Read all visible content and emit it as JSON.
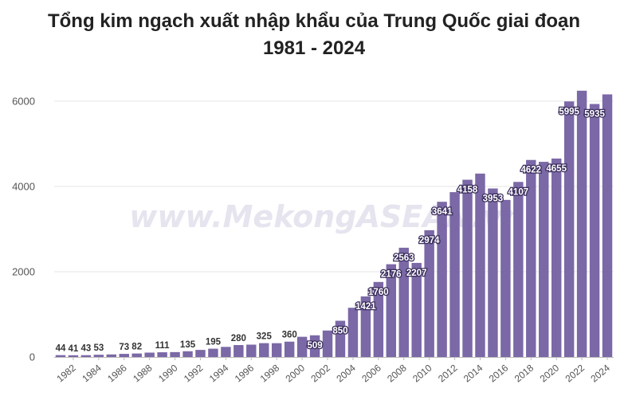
{
  "chart_data": {
    "type": "bar",
    "title_line1": "Tổng kim ngạch xuất nhập khẩu của Trung Quốc giai đoạn",
    "title_line2": "1981 - 2024",
    "watermark": "www.MekongASEAN.vn",
    "bar_color": "#7b68a6",
    "ylim": [
      0,
      6400
    ],
    "yticks": [
      0,
      2000,
      4000,
      6000
    ],
    "xtick_labels": [
      "1982",
      "1984",
      "1986",
      "1988",
      "1990",
      "1992",
      "1994",
      "1996",
      "1998",
      "2000",
      "2002",
      "2004",
      "2006",
      "2008",
      "2010",
      "2012",
      "2014",
      "2016",
      "2018",
      "2020",
      "2022",
      "2024"
    ],
    "categories": [
      "1981",
      "1982",
      "1983",
      "1984",
      "1985",
      "1986",
      "1987",
      "1988",
      "1989",
      "1990",
      "1991",
      "1992",
      "1993",
      "1994",
      "1995",
      "1996",
      "1997",
      "1998",
      "1999",
      "2000",
      "2001",
      "2002",
      "2003",
      "2004",
      "2005",
      "2006",
      "2007",
      "2008",
      "2009",
      "2010",
      "2011",
      "2012",
      "2013",
      "2014",
      "2015",
      "2016",
      "2017",
      "2018",
      "2019",
      "2020",
      "2021",
      "2022",
      "2023",
      "2024"
    ],
    "values": [
      44,
      41,
      43,
      53,
      60,
      73,
      82,
      103,
      111,
      115,
      135,
      166,
      195,
      237,
      280,
      290,
      325,
      324,
      360,
      474,
      509,
      621,
      850,
      1155,
      1421,
      1760,
      2176,
      2563,
      2207,
      2974,
      3641,
      3867,
      4158,
      4302,
      3953,
      3685,
      4107,
      4622,
      4578,
      4655,
      5995,
      6246,
      5935,
      6160
    ],
    "data_labels": [
      {
        "text": "44",
        "year": "1981",
        "style": "dark"
      },
      {
        "text": "41",
        "year": "1982",
        "style": "dark"
      },
      {
        "text": "43",
        "year": "1983",
        "style": "dark"
      },
      {
        "text": "53",
        "year": "1984",
        "style": "dark"
      },
      {
        "text": "73",
        "year": "1986",
        "style": "dark"
      },
      {
        "text": "82",
        "year": "1987",
        "style": "dark"
      },
      {
        "text": "111",
        "year": "1989",
        "style": "dark"
      },
      {
        "text": "135",
        "year": "1991",
        "style": "dark"
      },
      {
        "text": "195",
        "year": "1993",
        "style": "dark"
      },
      {
        "text": "280",
        "year": "1995",
        "style": "dark"
      },
      {
        "text": "325",
        "year": "1997",
        "style": "dark"
      },
      {
        "text": "360",
        "year": "1999",
        "style": "dark"
      },
      {
        "text": "509",
        "year": "2001",
        "style": "halo"
      },
      {
        "text": "850",
        "year": "2003",
        "style": "halo"
      },
      {
        "text": "1421",
        "year": "2005",
        "style": "halo"
      },
      {
        "text": "1760",
        "year": "2006",
        "style": "halo"
      },
      {
        "text": "2176",
        "year": "2007",
        "style": "halo"
      },
      {
        "text": "2563",
        "year": "2008",
        "style": "halo"
      },
      {
        "text": "2207",
        "year": "2009",
        "style": "halo"
      },
      {
        "text": "2974",
        "year": "2010",
        "style": "halo"
      },
      {
        "text": "3641",
        "year": "2011",
        "style": "halo"
      },
      {
        "text": "4158",
        "year": "2013",
        "style": "halo"
      },
      {
        "text": "3953",
        "year": "2015",
        "style": "halo"
      },
      {
        "text": "4107",
        "year": "2017",
        "style": "halo"
      },
      {
        "text": "4622",
        "year": "2018",
        "style": "halo"
      },
      {
        "text": "4655",
        "year": "2020",
        "style": "halo"
      },
      {
        "text": "5995",
        "year": "2021",
        "style": "halo"
      },
      {
        "text": "5935",
        "year": "2023",
        "style": "halo"
      }
    ],
    "xlabel": "",
    "ylabel": "",
    "grid": true,
    "legend": "none"
  }
}
